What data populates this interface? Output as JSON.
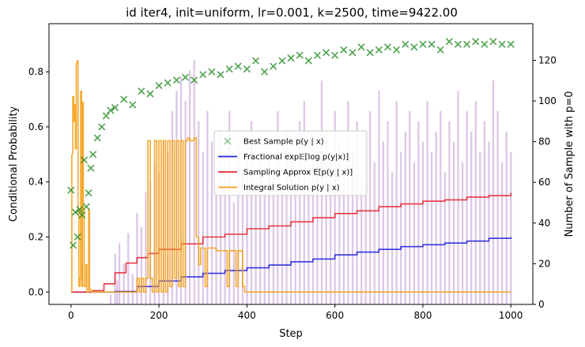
{
  "chart_data": {
    "type": "line",
    "title": "id iter4, init=uniform, lr=0.001, k=2500, time=9422.00",
    "xlabel": "Step",
    "ylabel": "Conditional Probability",
    "y2label": "Number of Sample with p=0",
    "xlim": [
      -50,
      1050
    ],
    "ylim": [
      -0.045,
      0.975
    ],
    "y2lim": [
      0,
      138
    ],
    "xticks": [
      0,
      200,
      400,
      600,
      800,
      1000
    ],
    "yticks": [
      0.0,
      0.2,
      0.4,
      0.6,
      0.8
    ],
    "y2ticks": [
      0,
      20,
      40,
      60,
      80,
      100,
      120
    ],
    "legend_position": "center-right",
    "colors": {
      "best_sample": "#228b22",
      "fractional": "#2222dd",
      "sampling": "#e8252f",
      "integral": "#f5a018",
      "histogram": "#9b59b6",
      "y2label": "#800080"
    },
    "series": [
      {
        "name": "Best Sample $p(y \\mid x)$",
        "legend_label": "Best Sample p(y | x)",
        "kind": "scatter",
        "marker": "x",
        "x": [
          0,
          5,
          10,
          15,
          20,
          25,
          30,
          35,
          40,
          45,
          50,
          60,
          70,
          80,
          90,
          100,
          120,
          140,
          160,
          180,
          200,
          220,
          240,
          260,
          280,
          300,
          320,
          340,
          360,
          380,
          400,
          420,
          440,
          460,
          480,
          500,
          520,
          540,
          560,
          580,
          600,
          620,
          640,
          660,
          680,
          700,
          720,
          740,
          760,
          780,
          800,
          820,
          840,
          860,
          880,
          900,
          920,
          940,
          960,
          980,
          1000
        ],
        "y": [
          0.37,
          0.17,
          0.29,
          0.2,
          0.3,
          0.28,
          0.48,
          0.31,
          0.36,
          0.45,
          0.5,
          0.56,
          0.6,
          0.64,
          0.66,
          0.67,
          0.7,
          0.68,
          0.73,
          0.72,
          0.75,
          0.76,
          0.77,
          0.78,
          0.77,
          0.79,
          0.8,
          0.79,
          0.81,
          0.82,
          0.81,
          0.84,
          0.8,
          0.82,
          0.84,
          0.85,
          0.86,
          0.84,
          0.86,
          0.87,
          0.86,
          0.88,
          0.87,
          0.89,
          0.87,
          0.88,
          0.89,
          0.88,
          0.9,
          0.89,
          0.9,
          0.9,
          0.88,
          0.91,
          0.9,
          0.9,
          0.91,
          0.9,
          0.91,
          0.9,
          0.9
        ]
      },
      {
        "name": "Fractional $\\exp\\mathbb{E}[\\log p(y|x)]$",
        "legend_label": "Fractional exp𝔼[log p(y|x)]",
        "kind": "line",
        "x": [
          0,
          50,
          100,
          150,
          200,
          250,
          300,
          350,
          400,
          450,
          500,
          550,
          600,
          650,
          700,
          750,
          800,
          850,
          900,
          950,
          1000
        ],
        "y": [
          0.0,
          0.0,
          0.002,
          0.02,
          0.04,
          0.055,
          0.068,
          0.078,
          0.088,
          0.098,
          0.11,
          0.12,
          0.135,
          0.145,
          0.155,
          0.165,
          0.172,
          0.178,
          0.185,
          0.195,
          0.2
        ]
      },
      {
        "name": "Sampling Approx $E[p(y \\mid x)]$",
        "legend_label": "Sampling Approx E[p(y | x)]",
        "kind": "line",
        "x": [
          0,
          25,
          50,
          75,
          100,
          125,
          150,
          175,
          200,
          250,
          300,
          350,
          400,
          450,
          500,
          550,
          600,
          650,
          700,
          750,
          800,
          850,
          900,
          950,
          1000
        ],
        "y": [
          0.0,
          0.0,
          0.005,
          0.03,
          0.07,
          0.105,
          0.125,
          0.14,
          0.155,
          0.175,
          0.2,
          0.21,
          0.23,
          0.24,
          0.255,
          0.27,
          0.285,
          0.295,
          0.31,
          0.32,
          0.33,
          0.335,
          0.345,
          0.35,
          0.36
        ]
      },
      {
        "name": "Integral Solution $p(y \\mid x)$",
        "legend_label": "Integral Solution p(y | x)",
        "kind": "line",
        "x": [
          0,
          2,
          4,
          6,
          8,
          10,
          12,
          14,
          16,
          18,
          20,
          22,
          24,
          26,
          28,
          30,
          34,
          36,
          40,
          42,
          46,
          50,
          60,
          80,
          100,
          120,
          140,
          150,
          155,
          160,
          165,
          170,
          175,
          180,
          185,
          190,
          195,
          200,
          205,
          210,
          215,
          220,
          225,
          230,
          235,
          240,
          245,
          250,
          255,
          260,
          265,
          270,
          275,
          280,
          285,
          290,
          295,
          300,
          305,
          310,
          315,
          320,
          330,
          340,
          350,
          355,
          360,
          365,
          370,
          375,
          380,
          385,
          390,
          395,
          400,
          420,
          500,
          600,
          700,
          800,
          900,
          1000
        ],
        "y": [
          0.0,
          0.5,
          0.71,
          0.62,
          0.68,
          0.52,
          0.83,
          0.84,
          0.3,
          0.02,
          0.05,
          0.73,
          0.02,
          0.69,
          0.3,
          0.02,
          0.1,
          0.0,
          0.3,
          0.01,
          0.0,
          0.0,
          0.0,
          0.0,
          0.0,
          0.0,
          0.0,
          0.05,
          0.0,
          0.05,
          0.0,
          0.05,
          0.55,
          0.05,
          0.0,
          0.55,
          0.0,
          0.55,
          0.0,
          0.55,
          0.0,
          0.55,
          0.02,
          0.55,
          0.05,
          0.55,
          0.02,
          0.55,
          0.02,
          0.55,
          0.56,
          0.55,
          0.55,
          0.56,
          0.2,
          0.1,
          0.16,
          0.16,
          0.02,
          0.16,
          0.16,
          0.16,
          0.15,
          0.15,
          0.15,
          0.02,
          0.15,
          0.15,
          0.15,
          0.02,
          0.15,
          0.15,
          0.02,
          0.0,
          0.0,
          0.0,
          0.0,
          0.0,
          0.0,
          0.0,
          0.0,
          0.0
        ]
      },
      {
        "name": "Number of Sample with p=0",
        "kind": "histogram",
        "axis": "y2",
        "x": [
          90,
          100,
          105,
          110,
          120,
          130,
          140,
          150,
          160,
          170,
          180,
          190,
          200,
          210,
          220,
          230,
          240,
          250,
          260,
          270,
          280,
          290,
          300,
          310,
          320,
          330,
          340,
          350,
          360,
          370,
          380,
          390,
          400,
          410,
          420,
          430,
          440,
          450,
          460,
          470,
          480,
          490,
          500,
          510,
          520,
          530,
          540,
          550,
          560,
          570,
          580,
          590,
          600,
          610,
          620,
          630,
          640,
          650,
          660,
          670,
          680,
          690,
          700,
          710,
          720,
          730,
          740,
          750,
          760,
          770,
          780,
          790,
          800,
          810,
          820,
          830,
          840,
          850,
          860,
          870,
          880,
          890,
          900,
          910,
          920,
          930,
          940,
          950,
          960,
          970,
          980,
          990,
          1000
        ],
        "y": [
          5,
          25,
          12,
          30,
          20,
          35,
          15,
          45,
          38,
          55,
          60,
          70,
          65,
          80,
          75,
          95,
          105,
          112,
          100,
          115,
          120,
          90,
          75,
          95,
          80,
          60,
          85,
          70,
          95,
          50,
          80,
          65,
          75,
          90,
          60,
          70,
          55,
          80,
          65,
          95,
          60,
          85,
          70,
          55,
          90,
          100,
          65,
          80,
          75,
          110,
          85,
          70,
          95,
          80,
          65,
          100,
          75,
          90,
          60,
          85,
          95,
          70,
          105,
          80,
          90,
          65,
          100,
          75,
          85,
          95,
          70,
          90,
          80,
          100,
          75,
          85,
          95,
          65,
          90,
          80,
          105,
          70,
          95,
          85,
          100,
          75,
          90,
          80,
          110,
          95,
          70,
          85,
          75
        ]
      }
    ]
  }
}
